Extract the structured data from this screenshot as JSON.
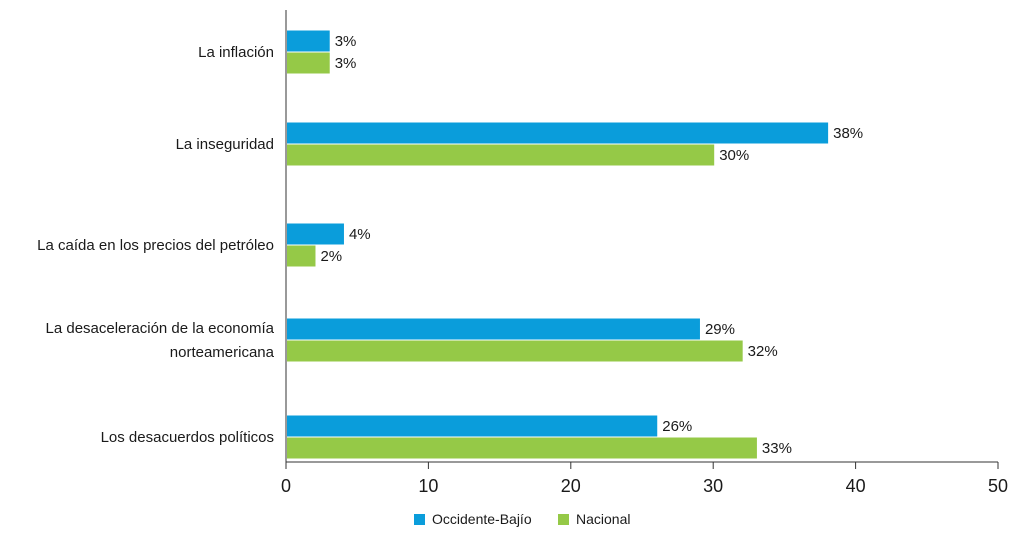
{
  "chart_data": {
    "type": "bar",
    "orientation": "horizontal",
    "categories": [
      [
        "La inflación"
      ],
      [
        "La inseguridad"
      ],
      [
        "La caída en los precios del petróleo"
      ],
      [
        "La desaceleración de la economía",
        "norteamericana"
      ],
      [
        "Los desacuerdos políticos"
      ]
    ],
    "series": [
      {
        "name": "Occidente-Bajío",
        "color": "#0a9ddb",
        "values": [
          3,
          38,
          4,
          29,
          26
        ],
        "labels": [
          "3%",
          "38%",
          "4%",
          "29%",
          "26%"
        ]
      },
      {
        "name": "Nacional",
        "color": "#95c947",
        "values": [
          3,
          30,
          2,
          32,
          33
        ],
        "labels": [
          "3%",
          "30%",
          "2%",
          "32%",
          "33%"
        ]
      }
    ],
    "xlim": [
      0,
      50
    ],
    "xticks": [
      "0",
      "10",
      "20",
      "30",
      "40",
      "50"
    ],
    "grid": false,
    "legend_position": "bottom"
  }
}
